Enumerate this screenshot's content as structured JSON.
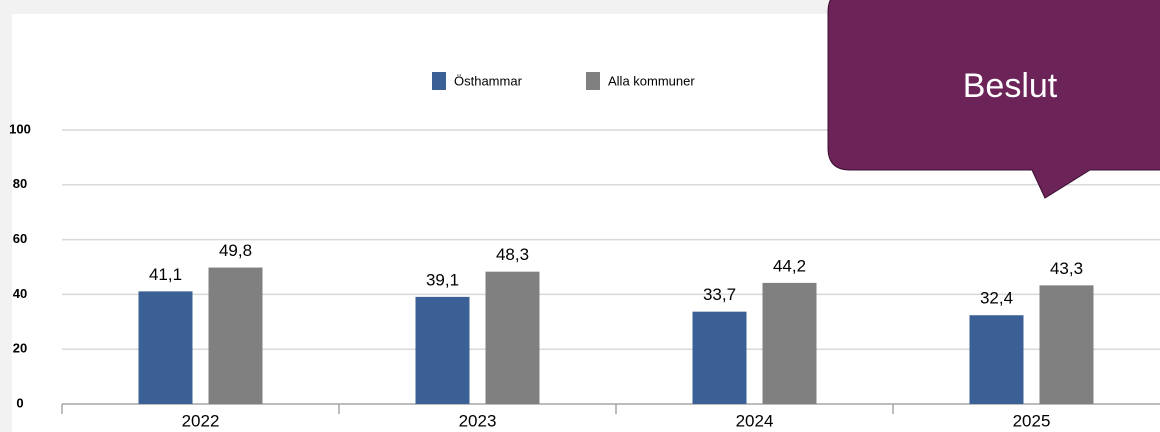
{
  "chart_data": {
    "type": "bar",
    "categories": [
      "2022",
      "2023",
      "2024",
      "2025"
    ],
    "series": [
      {
        "name": "Östhammar",
        "color": "#3a6095",
        "values": [
          41.1,
          39.1,
          33.7,
          32.4
        ],
        "value_labels": [
          "41,1",
          "39,1",
          "33,7",
          "32,4"
        ]
      },
      {
        "name": "Alla kommuner",
        "color": "#808080",
        "values": [
          49.8,
          48.3,
          44.2,
          43.3
        ],
        "value_labels": [
          "49,8",
          "48,3",
          "44,2",
          "43,3"
        ]
      }
    ],
    "ylim": [
      0,
      100
    ],
    "yticks": [
      0,
      20,
      40,
      60,
      80,
      100
    ],
    "grid": true,
    "legend": "top"
  },
  "callout": "Beslut"
}
